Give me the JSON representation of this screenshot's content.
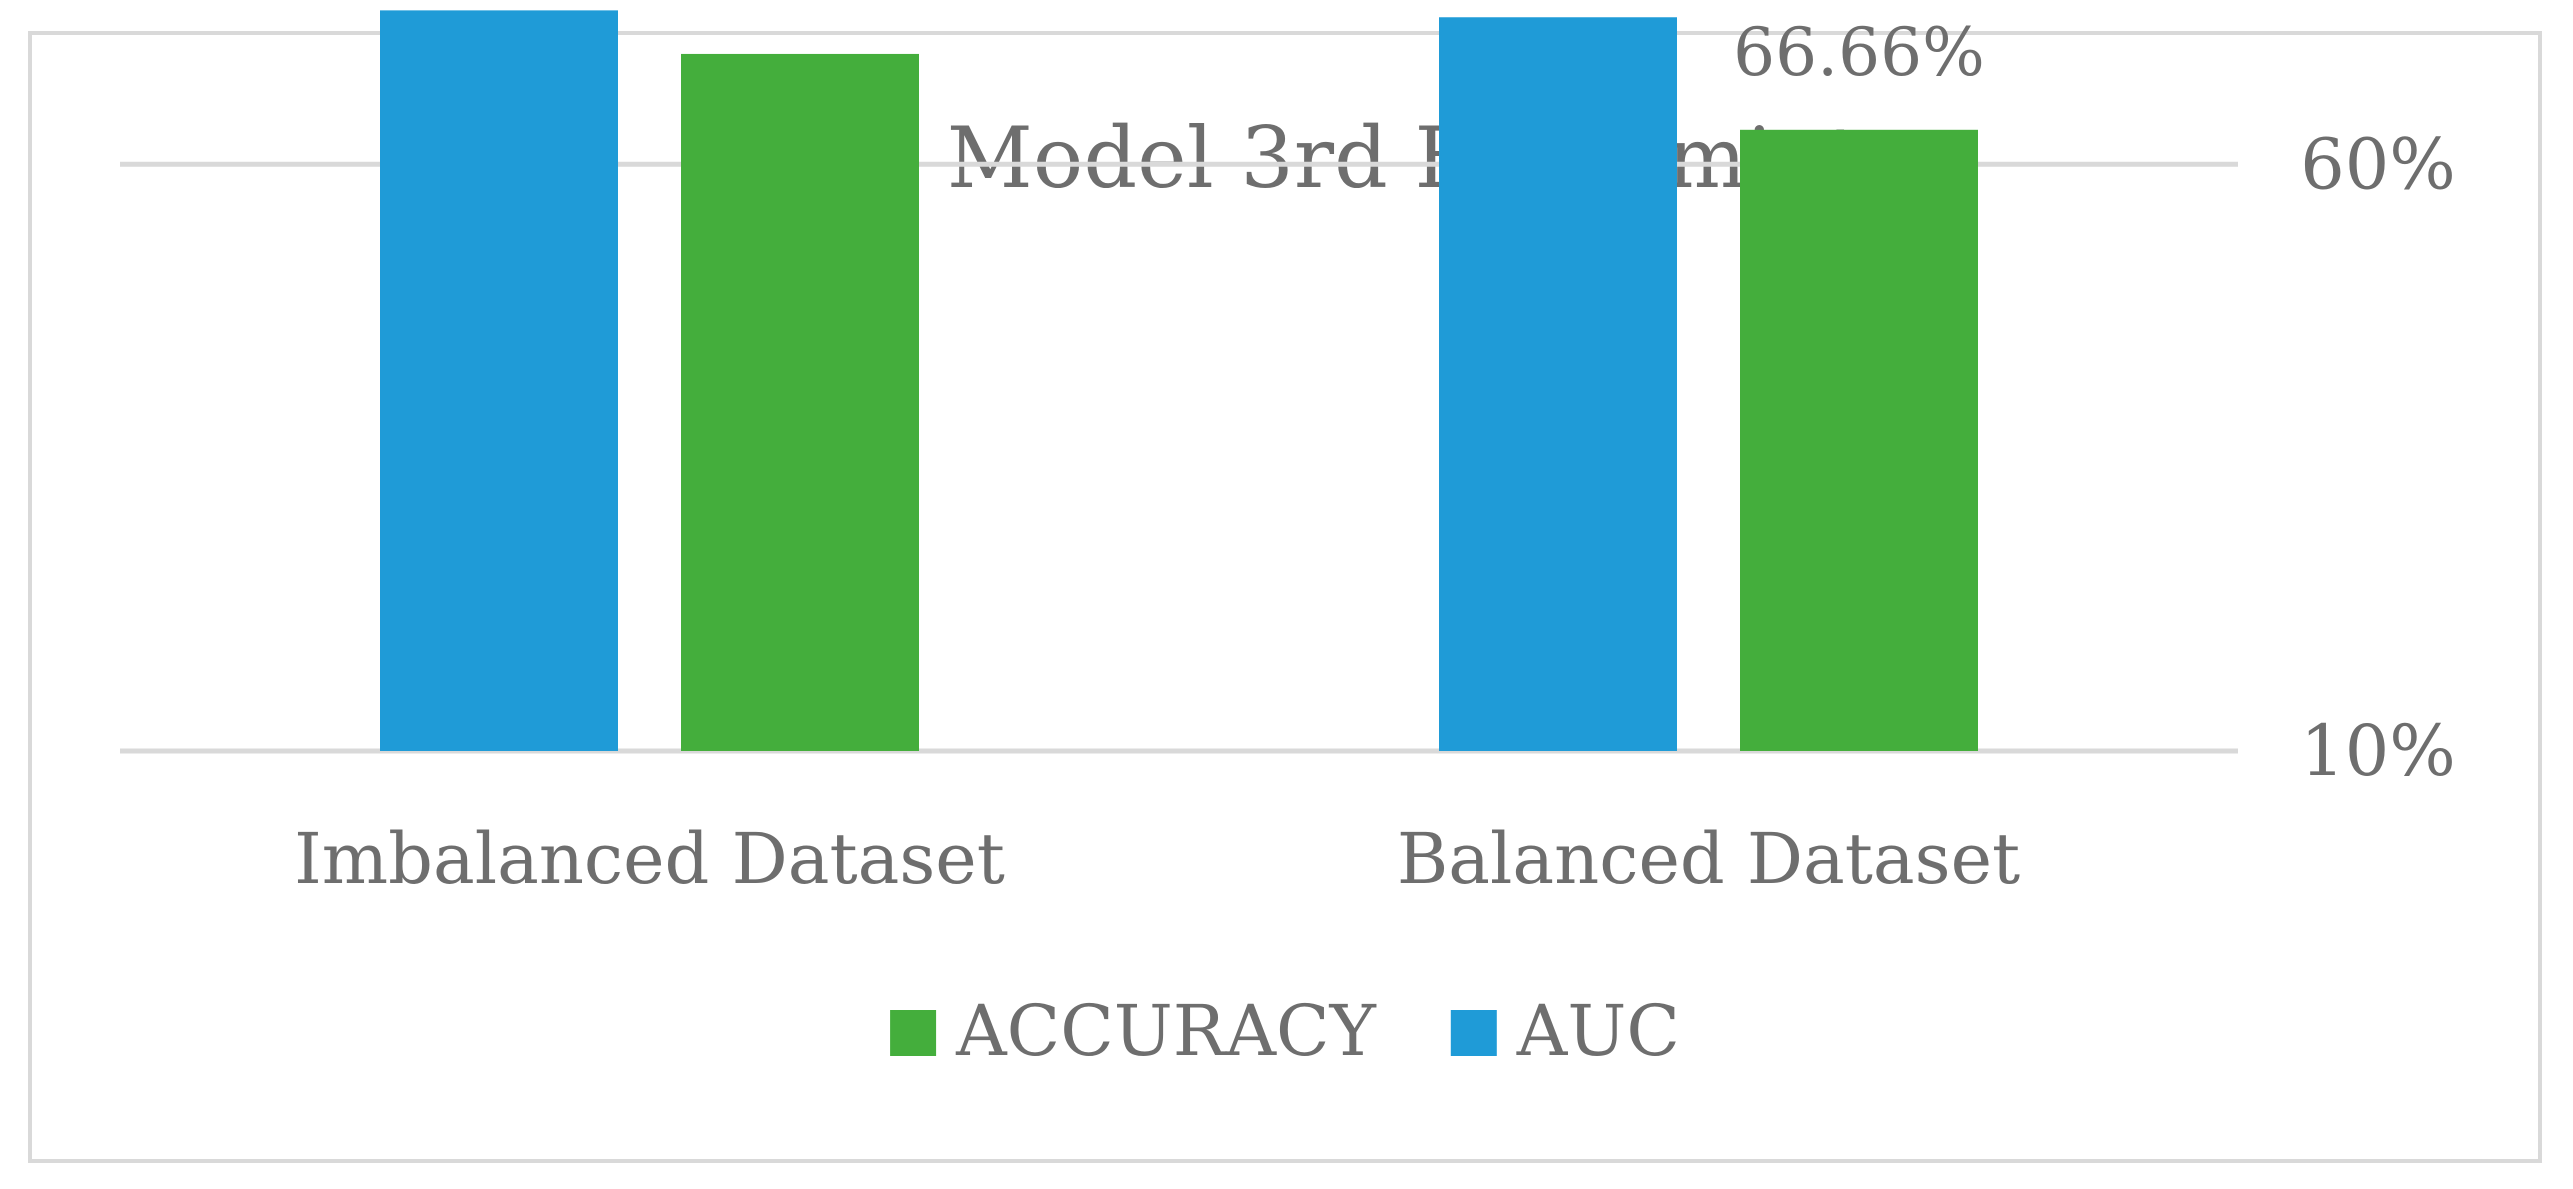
{
  "chart_data": {
    "type": "bar",
    "title": "CNN Model 3rd Expermint",
    "categories": [
      "Imbalanced Dataset",
      "Balanced Dataset"
    ],
    "series": [
      {
        "name": "AUC",
        "color": "#1f9bd7",
        "values": [
          96,
          94
        ],
        "labels": [
          "96%",
          "94%"
        ]
      },
      {
        "name": "ACCURACY",
        "color": "#44ae3c",
        "values": [
          84.04,
          66.66
        ],
        "labels": [
          "84.04%",
          "66.66%"
        ]
      }
    ],
    "y_axis": {
      "scale": "log",
      "position": "right",
      "ticks": [
        10,
        60
      ],
      "tick_labels": [
        "10%",
        "60%"
      ]
    },
    "gridlines": true,
    "legend": {
      "position": "bottom",
      "order": [
        "ACCURACY",
        "AUC"
      ]
    },
    "xlabel": "",
    "ylabel": ""
  }
}
